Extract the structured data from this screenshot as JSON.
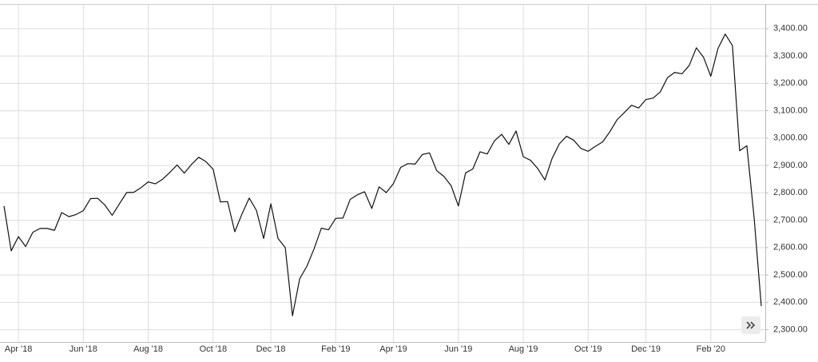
{
  "chart_data": {
    "type": "line",
    "categories": [
      null,
      null,
      "Apr '18",
      null,
      null,
      null,
      null,
      null,
      null,
      null,
      null,
      "Jun '18",
      null,
      null,
      null,
      null,
      null,
      null,
      null,
      null,
      "Aug '18",
      null,
      null,
      null,
      null,
      null,
      null,
      null,
      null,
      "Oct '18",
      null,
      null,
      null,
      null,
      null,
      null,
      null,
      "Dec '18",
      null,
      null,
      null,
      null,
      null,
      null,
      null,
      null,
      "Feb '19",
      null,
      null,
      null,
      null,
      null,
      null,
      null,
      "Apr '19",
      null,
      null,
      null,
      null,
      null,
      null,
      null,
      null,
      "Jun '19",
      null,
      null,
      null,
      null,
      null,
      null,
      null,
      null,
      "Aug '19",
      null,
      null,
      null,
      null,
      null,
      null,
      null,
      null,
      "Oct '19",
      null,
      null,
      null,
      null,
      null,
      null,
      null,
      "Dec '19",
      null,
      null,
      null,
      null,
      null,
      null,
      null,
      null,
      "Feb '20",
      null,
      null,
      null,
      null,
      null,
      null,
      null
    ],
    "values": [
      2752,
      2588,
      2640,
      2604,
      2656,
      2670,
      2670,
      2663,
      2728,
      2713,
      2721,
      2735,
      2779,
      2780,
      2755,
      2718,
      2760,
      2801,
      2802,
      2819,
      2840,
      2833,
      2850,
      2875,
      2902,
      2872,
      2904,
      2930,
      2914,
      2886,
      2767,
      2768,
      2658,
      2723,
      2781,
      2736,
      2633,
      2760,
      2633,
      2600,
      2351,
      2486,
      2532,
      2596,
      2671,
      2665,
      2707,
      2708,
      2776,
      2793,
      2804,
      2743,
      2822,
      2801,
      2834,
      2893,
      2907,
      2905,
      2940,
      2946,
      2881,
      2860,
      2826,
      2752,
      2873,
      2887,
      2950,
      2942,
      2990,
      3014,
      2977,
      3026,
      2932,
      2919,
      2889,
      2847,
      2926,
      2979,
      3007,
      2992,
      2962,
      2952,
      2970,
      2986,
      3023,
      3067,
      3093,
      3120,
      3110,
      3141,
      3146,
      3169,
      3221,
      3240,
      3235,
      3265,
      3330,
      3295,
      3226,
      3328,
      3380,
      3338,
      2954,
      2972,
      2711,
      2386
    ],
    "color": "#111111",
    "ylim": [
      2255,
      3490
    ],
    "yticks": [
      {
        "value": 2300,
        "label": "2,300.00"
      },
      {
        "value": 2400,
        "label": "2,400.00"
      },
      {
        "value": 2500,
        "label": "2,500.00"
      },
      {
        "value": 2600,
        "label": "2,600.00"
      },
      {
        "value": 2700,
        "label": "2,700.00"
      },
      {
        "value": 2800,
        "label": "2,800.00"
      },
      {
        "value": 2900,
        "label": "2,900.00"
      },
      {
        "value": 3000,
        "label": "3,000.00"
      },
      {
        "value": 3100,
        "label": "3,100.00"
      },
      {
        "value": 3200,
        "label": "3,200.00"
      },
      {
        "value": 3300,
        "label": "3,300.00"
      },
      {
        "value": 3400,
        "label": "3,400.00"
      }
    ],
    "grid": true
  }
}
